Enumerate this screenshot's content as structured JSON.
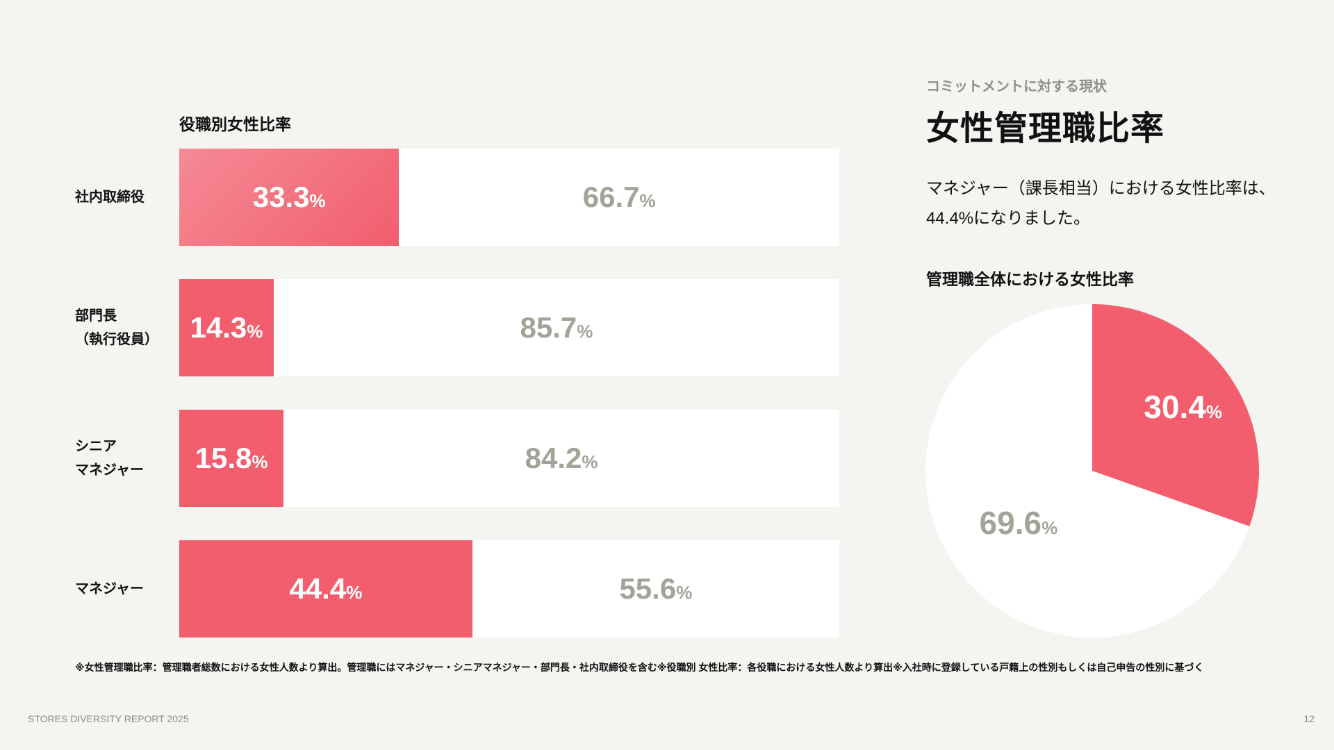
{
  "slide": {
    "eyebrow": "コミットメントに対する現状",
    "headline": "女性管理職比率",
    "body_lines": [
      "マネジャー（課長相当）における女性比率は、",
      "44.4%になりました。"
    ],
    "footnote": "※女性管理職比率：管理職者総数における女性人数より算出。管理職にはマネジャー・シニアマネジャー・部門長・社内取締役を含む※役職別 女性比率：各役職における女性人数より算出※入社時に登録している戸籍上の性別もしくは自己申告の性別に基づく",
    "footer_left": "STORES DIVERSITY REPORT 2025",
    "page_number": "12"
  },
  "colors": {
    "female": "#f25e6e",
    "female_light": "#f48a95",
    "male_bar": "#ffffff",
    "male_text": "#a3a398",
    "background": "#f4f4f0"
  },
  "chart_data": [
    {
      "type": "bar",
      "orientation": "horizontal",
      "stacked": true,
      "title": "役職別女性比率",
      "unit": "%",
      "categories": [
        [
          "社内取締役"
        ],
        [
          "部門長",
          "（執行役員）"
        ],
        [
          "シニア",
          "マネジャー"
        ],
        [
          "マネジャー"
        ]
      ],
      "series": [
        {
          "values": [
            33.3,
            14.3,
            15.8,
            44.4
          ],
          "color": "#f25e6e"
        },
        {
          "values": [
            66.7,
            85.7,
            84.2,
            55.6
          ],
          "color": "#ffffff"
        }
      ],
      "xlim": [
        0,
        100
      ]
    },
    {
      "type": "pie",
      "title": "管理職全体における女性比率",
      "unit": "%",
      "values": [
        30.4,
        69.6
      ],
      "colors": [
        "#f25e6e",
        "#ffffff"
      ]
    }
  ]
}
